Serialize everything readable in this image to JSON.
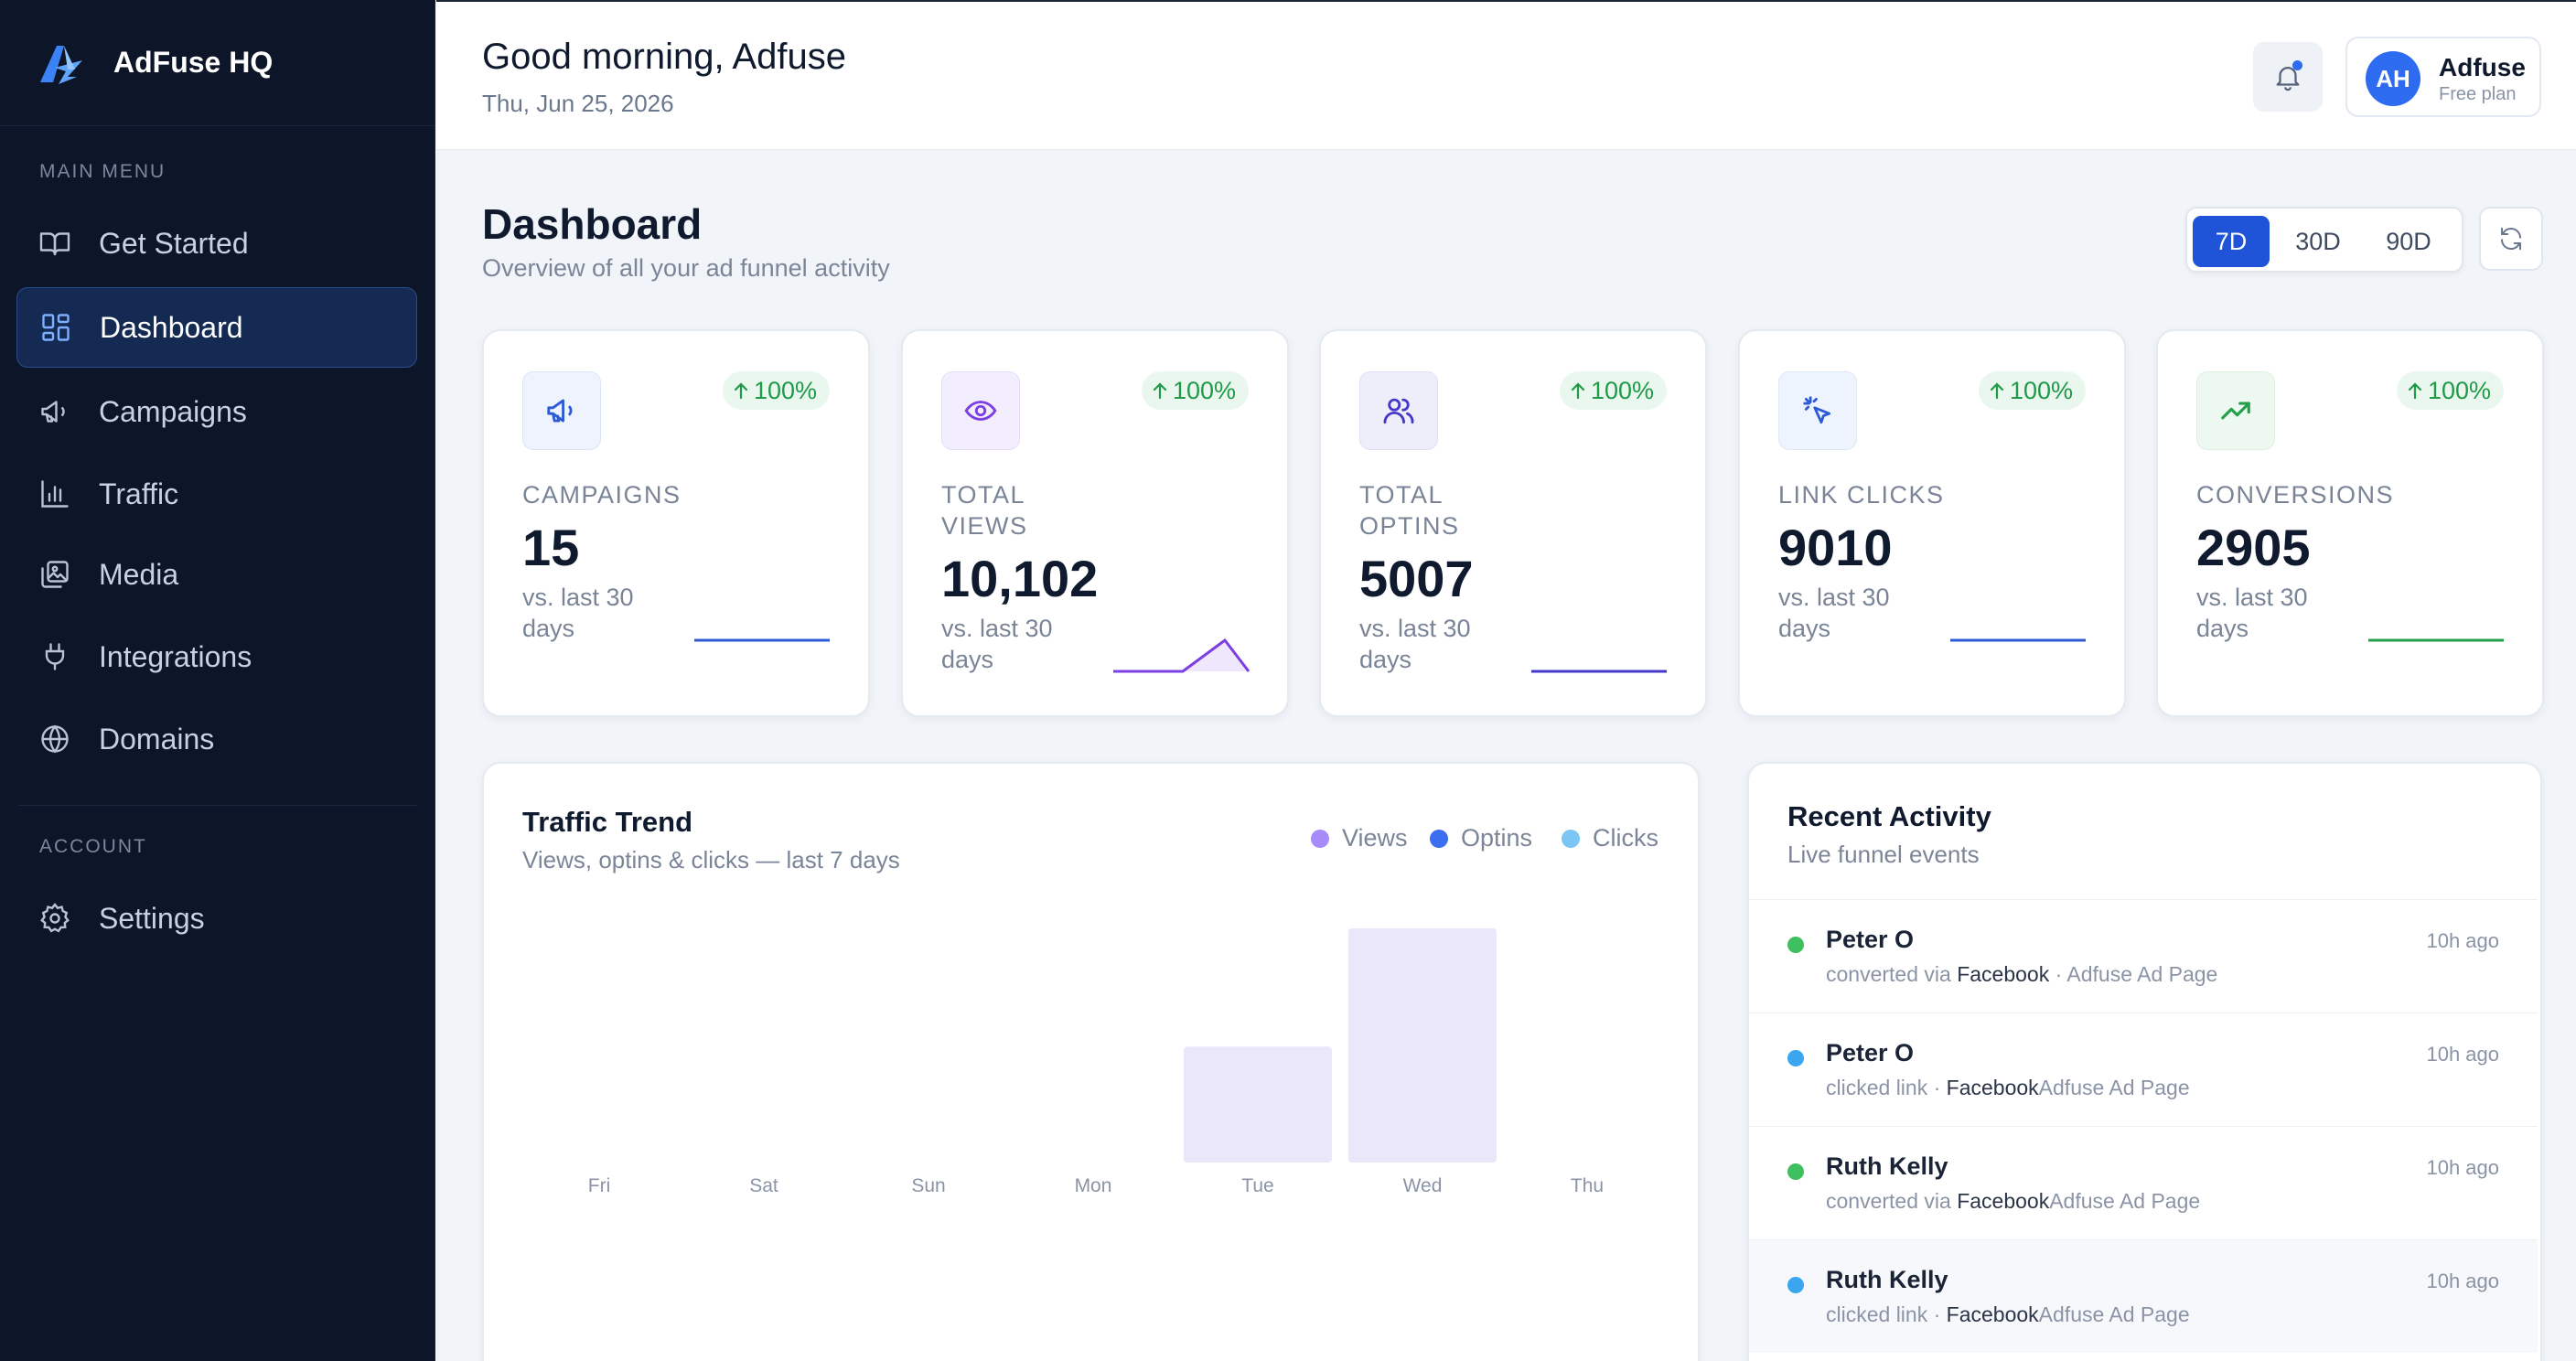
{
  "brand": {
    "name": "AdFuse HQ"
  },
  "sidebar": {
    "main_label": "MAIN MENU",
    "account_label": "ACCOUNT",
    "items": [
      {
        "label": "Get Started",
        "icon": "book-icon"
      },
      {
        "label": "Dashboard",
        "icon": "grid-icon",
        "active": true
      },
      {
        "label": "Campaigns",
        "icon": "megaphone-icon"
      },
      {
        "label": "Traffic",
        "icon": "bar-chart-icon"
      },
      {
        "label": "Media",
        "icon": "images-icon"
      },
      {
        "label": "Integrations",
        "icon": "plug-icon"
      },
      {
        "label": "Domains",
        "icon": "globe-icon"
      }
    ],
    "account_items": [
      {
        "label": "Settings",
        "icon": "gear-icon"
      }
    ]
  },
  "header": {
    "greeting": "Good morning, Adfuse",
    "date": "Thu, Jun 25, 2026",
    "user": {
      "initials": "AH",
      "name": "Adfuse",
      "plan": "Free plan"
    }
  },
  "page": {
    "title": "Dashboard",
    "subtitle": "Overview of all your ad funnel activity",
    "ranges": [
      "7D",
      "30D",
      "90D"
    ],
    "selected_range": "7D"
  },
  "stats": [
    {
      "label": "CAMPAIGNS",
      "value": "15",
      "change": "100%",
      "sub": "vs. last 30 days",
      "icon": "megaphone-icon",
      "accent": "#2d5bd6"
    },
    {
      "label": "TOTAL VIEWS",
      "value": "10,102",
      "change": "100%",
      "sub": "vs. last 30 days",
      "icon": "eye-icon",
      "accent": "#7b3fe4"
    },
    {
      "label": "TOTAL OPTINS",
      "value": "5007",
      "change": "100%",
      "sub": "vs. last 30 days",
      "icon": "users-icon",
      "accent": "#4338ca"
    },
    {
      "label": "LINK CLICKS",
      "value": "9010",
      "change": "100%",
      "sub": "vs. last 30 days",
      "icon": "cursor-click-icon",
      "accent": "#2d5bd6"
    },
    {
      "label": "CONVERSIONS",
      "value": "2905",
      "change": "100%",
      "sub": "vs. last 30 days",
      "icon": "trending-up-icon",
      "accent": "#22a04b"
    }
  ],
  "traffic": {
    "title": "Traffic Trend",
    "subtitle": "Views, optins & clicks — last 7 days",
    "legend": [
      {
        "name": "Views",
        "color": "#a78bfa"
      },
      {
        "name": "Optins",
        "color": "#3b6ef0"
      },
      {
        "name": "Clicks",
        "color": "#7cc6f5"
      }
    ]
  },
  "chart_data": {
    "type": "bar",
    "categories": [
      "Fri",
      "Sat",
      "Sun",
      "Mon",
      "Tue",
      "Wed",
      "Thu"
    ],
    "series": [
      {
        "name": "Views",
        "values": [
          0,
          0,
          0,
          0,
          5000,
          10102,
          0
        ]
      }
    ],
    "ylim": [
      0,
      10102
    ],
    "grid": false,
    "legend_position": "top-right"
  },
  "activity": {
    "title": "Recent Activity",
    "subtitle": "Live funnel events",
    "items": [
      {
        "name": "Peter O",
        "action": "converted via ",
        "source": "Facebook",
        "rest": " · Adfuse Ad Page",
        "time": "10h ago",
        "color": "#3fbf5f"
      },
      {
        "name": "Peter O",
        "action": "clicked link · ",
        "source": "Facebook",
        "rest": "Adfuse Ad Page",
        "time": "10h ago",
        "color": "#3ba6f0"
      },
      {
        "name": "Ruth Kelly",
        "action": "converted via ",
        "source": "Facebook",
        "rest": "Adfuse Ad Page",
        "time": "10h ago",
        "color": "#3fbf5f"
      },
      {
        "name": "Ruth Kelly",
        "action": "clicked link · ",
        "source": "Facebook",
        "rest": "Adfuse Ad Page",
        "time": "10h ago",
        "color": "#3ba6f0"
      }
    ]
  }
}
